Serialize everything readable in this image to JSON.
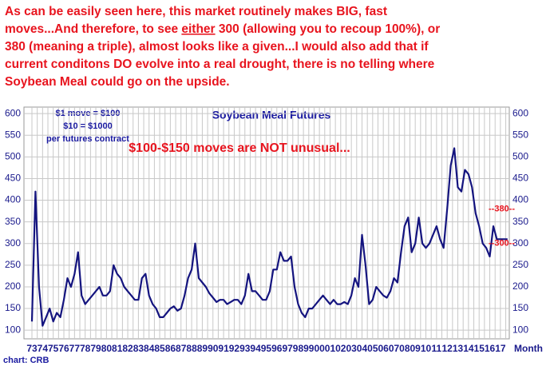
{
  "chart_data": {
    "type": "line",
    "title": "Soybean Meal Futures",
    "x_label": "Month",
    "source": "chart: CRB",
    "note_lines": [
      [
        "As can be easily seen here, this market routinely makes BIG, fast"
      ],
      [
        "moves...And therefore, to see ",
        "either",
        " 300 (allowing you to recoup 100%), or"
      ],
      [
        "380 (meaning a triple), almost looks like a given...I would also add that if"
      ],
      [
        "current conditons DO evolve into a real drought, there is no telling where"
      ],
      [
        "Soybean Meal could go on the upside."
      ]
    ],
    "info_lines": [
      "$1 move = $100",
      "$10 = $1000",
      "per futures contract"
    ],
    "callout": "$100-$150 moves are NOT unusual...",
    "levels": [
      {
        "value": 380,
        "label": "--380--"
      },
      {
        "value": 300,
        "label": "--300--"
      }
    ],
    "categories": [
      "73",
      null,
      null,
      "74",
      null,
      null,
      "75",
      null,
      null,
      "76",
      null,
      null,
      "77",
      null,
      null,
      "78",
      null,
      null,
      "79",
      null,
      null,
      "80",
      null,
      null,
      "81",
      null,
      null,
      "82",
      null,
      null,
      "83",
      null,
      null,
      "84",
      null,
      null,
      "85",
      null,
      null,
      "86",
      null,
      null,
      "87",
      null,
      null,
      "88",
      null,
      null,
      "89",
      null,
      null,
      "90",
      null,
      null,
      "91",
      null,
      null,
      "92",
      null,
      null,
      "93",
      null,
      null,
      "94",
      null,
      null,
      "95",
      null,
      null,
      "96",
      null,
      null,
      "97",
      null,
      null,
      "98",
      null,
      null,
      "99",
      null,
      null,
      "00",
      null,
      null,
      "01",
      null,
      null,
      "02",
      null,
      null,
      "03",
      null,
      null,
      "04",
      null,
      null,
      "05",
      null,
      null,
      "06",
      null,
      null,
      "07",
      null,
      null,
      "08",
      null,
      null,
      "09",
      null,
      null,
      "10",
      null,
      null,
      "11",
      null,
      null,
      "12",
      null,
      null,
      "13",
      null,
      null,
      "14",
      null,
      null,
      "15",
      null,
      null,
      "16",
      null,
      null,
      "17",
      null,
      null
    ],
    "series": [
      {
        "name": "Soybean Meal",
        "color": "#14147f",
        "values": [
          120,
          420,
          200,
          110,
          130,
          150,
          120,
          140,
          130,
          170,
          220,
          200,
          230,
          280,
          180,
          160,
          170,
          180,
          190,
          200,
          180,
          180,
          190,
          250,
          230,
          220,
          200,
          190,
          180,
          170,
          170,
          220,
          230,
          180,
          160,
          150,
          130,
          130,
          140,
          150,
          155,
          145,
          150,
          180,
          220,
          240,
          300,
          220,
          210,
          200,
          185,
          175,
          165,
          170,
          170,
          160,
          165,
          170,
          170,
          160,
          180,
          230,
          190,
          190,
          180,
          170,
          170,
          190,
          240,
          240,
          280,
          260,
          260,
          270,
          200,
          160,
          140,
          130,
          150,
          150,
          160,
          170,
          180,
          170,
          160,
          170,
          160,
          160,
          165,
          160,
          180,
          220,
          200,
          320,
          250,
          160,
          170,
          200,
          190,
          180,
          175,
          190,
          220,
          210,
          280,
          340,
          360,
          280,
          300,
          360,
          300,
          290,
          300,
          320,
          340,
          310,
          290,
          380,
          480,
          520,
          430,
          420,
          470,
          460,
          430,
          370,
          340,
          300,
          290,
          270,
          340,
          310,
          310,
          310,
          310
        ]
      }
    ],
    "ylim": [
      80,
      615
    ],
    "yticks": [
      100,
      150,
      200,
      250,
      300,
      350,
      400,
      450,
      500,
      550,
      600
    ],
    "grid": true
  }
}
